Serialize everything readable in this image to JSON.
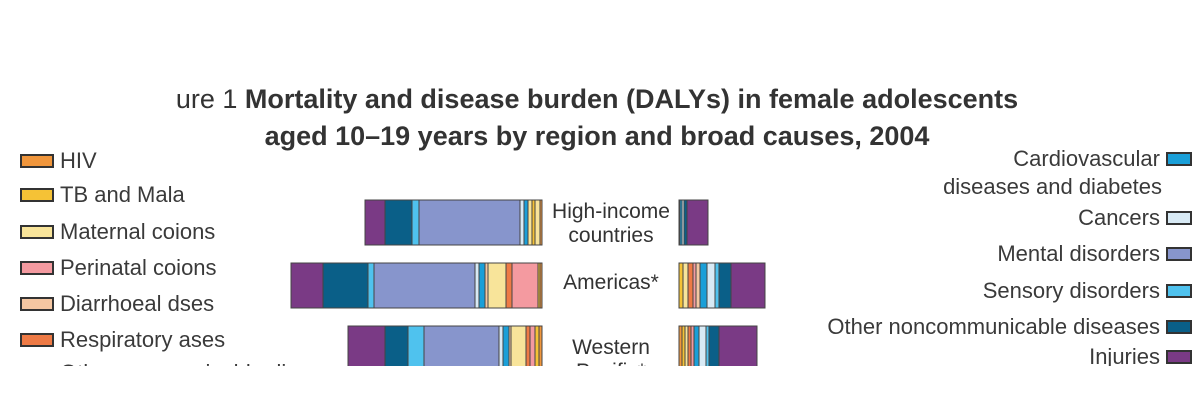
{
  "chart_data": {
    "type": "bar",
    "title_prefix": "ure 1",
    "title_line1": "Mortality and disease burden (DALYs) in female adolescents",
    "title_line2": "aged 10–19 years by region and broad causes, 2004",
    "categories": [
      "High-income countries",
      "Americas*",
      "Western Pacific*"
    ],
    "category_label_lines": [
      [
        "High-income",
        "countries"
      ],
      [
        "Americas*"
      ],
      [
        "Western",
        "Pacific*"
      ]
    ],
    "left_legend": [
      {
        "label": "HIV",
        "color": "#f0963c"
      },
      {
        "label": "TB and Mala",
        "color": "#f5c236"
      },
      {
        "label": "Maternal coions",
        "color": "#f8e49a"
      },
      {
        "label": "Perinatal coions",
        "color": "#f49aa0"
      },
      {
        "label": "Diarrhoeal dses",
        "color": "#f5c7a2"
      },
      {
        "label": "Respiratory ases",
        "color": "#ee7a45"
      }
    ],
    "right_legend": [
      {
        "label_lines": [
          "Cardiovascular",
          "diseases and diabetes"
        ],
        "color": "#1a9fd8"
      },
      {
        "label_lines": [
          "Cancers"
        ],
        "color": "#d8eaf5"
      },
      {
        "label_lines": [
          "Mental disorders"
        ],
        "color": "#8795cc"
      },
      {
        "label_lines": [
          "Sensory disorders"
        ],
        "color": "#4fc2ee"
      },
      {
        "label_lines": [
          "Other noncommunicable diseases"
        ],
        "color": "#0a5f88"
      },
      {
        "label_lines": [
          "Injuries"
        ],
        "color": "#7a3a85"
      }
    ],
    "dalys_series": [
      {
        "region": "High-income countries",
        "segments": [
          {
            "color": "#7a3a85",
            "value": 20
          },
          {
            "color": "#0a5f88",
            "value": 27
          },
          {
            "color": "#4fc2ee",
            "value": 7
          },
          {
            "color": "#8795cc",
            "value": 101
          },
          {
            "color": "#d8eaf5",
            "value": 4
          },
          {
            "color": "#1a9fd8",
            "value": 4
          },
          {
            "color": "#f8e49a",
            "value": 4
          },
          {
            "color": "#f5c236",
            "value": 3
          },
          {
            "color": "#f8e49a",
            "value": 5
          },
          {
            "color": "#f0963c",
            "value": 2
          }
        ]
      },
      {
        "region": "Americas*",
        "segments": [
          {
            "color": "#7a3a85",
            "value": 32
          },
          {
            "color": "#0a5f88",
            "value": 45
          },
          {
            "color": "#4fc2ee",
            "value": 6
          },
          {
            "color": "#8795cc",
            "value": 101
          },
          {
            "color": "#d8eaf5",
            "value": 4
          },
          {
            "color": "#1a9fd8",
            "value": 6
          },
          {
            "color": "#f5c7a2",
            "value": 3
          },
          {
            "color": "#f8e49a",
            "value": 18
          },
          {
            "color": "#ee7a45",
            "value": 6
          },
          {
            "color": "#f49aa0",
            "value": 26
          },
          {
            "color": "#f5c236",
            "value": 2
          },
          {
            "color": "#f0963c",
            "value": 2
          }
        ]
      },
      {
        "region": "Western Pacific*",
        "segments": [
          {
            "color": "#7a3a85",
            "value": 37
          },
          {
            "color": "#0a5f88",
            "value": 23
          },
          {
            "color": "#4fc2ee",
            "value": 16
          },
          {
            "color": "#8795cc",
            "value": 75
          },
          {
            "color": "#d8eaf5",
            "value": 4
          },
          {
            "color": "#1a9fd8",
            "value": 6
          },
          {
            "color": "#f5c7a2",
            "value": 2
          },
          {
            "color": "#f8e49a",
            "value": 15
          },
          {
            "color": "#ee7a45",
            "value": 4
          },
          {
            "color": "#f49aa0",
            "value": 5
          },
          {
            "color": "#f5c236",
            "value": 4
          },
          {
            "color": "#f0963c",
            "value": 3
          }
        ]
      }
    ],
    "mortality_series": [
      {
        "region": "High-income countries",
        "segments": [
          {
            "color": "#f5c236",
            "value": 1
          },
          {
            "color": "#1a9fd8",
            "value": 2
          },
          {
            "color": "#d8eaf5",
            "value": 2
          },
          {
            "color": "#0a5f88",
            "value": 3
          },
          {
            "color": "#7a3a85",
            "value": 21
          }
        ]
      },
      {
        "region": "Americas*",
        "segments": [
          {
            "color": "#f5c236",
            "value": 4
          },
          {
            "color": "#f8e49a",
            "value": 5
          },
          {
            "color": "#ee7a45",
            "value": 5
          },
          {
            "color": "#f49aa0",
            "value": 3
          },
          {
            "color": "#f5c7a2",
            "value": 4
          },
          {
            "color": "#1a9fd8",
            "value": 7
          },
          {
            "color": "#d8eaf5",
            "value": 8
          },
          {
            "color": "#4fc2ee",
            "value": 4
          },
          {
            "color": "#0a5f88",
            "value": 12
          },
          {
            "color": "#7a3a85",
            "value": 34
          }
        ]
      },
      {
        "region": "Western Pacific*",
        "segments": [
          {
            "color": "#f0963c",
            "value": 3
          },
          {
            "color": "#f5c236",
            "value": 3
          },
          {
            "color": "#f8e49a",
            "value": 3
          },
          {
            "color": "#ee7a45",
            "value": 3
          },
          {
            "color": "#f49aa0",
            "value": 3
          },
          {
            "color": "#1a9fd8",
            "value": 5
          },
          {
            "color": "#d8eaf5",
            "value": 7
          },
          {
            "color": "#4fc2ee",
            "value": 3
          },
          {
            "color": "#0a5f88",
            "value": 10
          },
          {
            "color": "#7a3a85",
            "value": 38
          }
        ]
      }
    ],
    "partial_legend_text": "Other communicable di"
  }
}
